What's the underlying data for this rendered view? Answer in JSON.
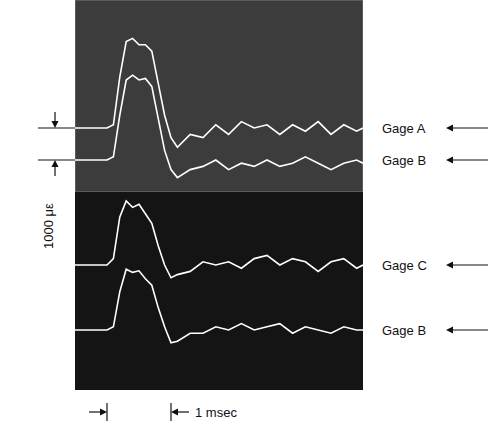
{
  "chart_data": [
    {
      "type": "line",
      "x": [
        0,
        0.3,
        0.5,
        0.6,
        0.7,
        0.8,
        0.9,
        1.0,
        1.1,
        1.2,
        1.3,
        1.4,
        1.5,
        1.6,
        1.8,
        2.0,
        2.2,
        2.4,
        2.6,
        2.8,
        3.0,
        3.2,
        3.4,
        3.6,
        3.8,
        4.0,
        4.2,
        4.4,
        4.5
      ],
      "series": [
        {
          "name": "Gage A",
          "color": "#ffffff",
          "values": [
            0,
            0,
            0,
            100,
            1600,
            2700,
            2800,
            2600,
            2600,
            2400,
            1400,
            400,
            -300,
            -600,
            -200,
            -300,
            100,
            -200,
            200,
            0,
            100,
            -200,
            100,
            -100,
            200,
            -200,
            100,
            -100,
            0
          ]
        }
      ],
      "xlim": [
        0,
        4.5
      ],
      "ylim": [
        -2000,
        4000
      ],
      "xticks": [
        0,
        0.5,
        1,
        1.5,
        2,
        2.5,
        3,
        3.5,
        4,
        4.5
      ],
      "yticks": [
        -2000,
        -1000,
        0,
        1000,
        2000,
        3000,
        4000
      ],
      "grid": true,
      "tick_labels": false
    },
    {
      "type": "line",
      "x": [
        0,
        0.3,
        0.5,
        0.6,
        0.7,
        0.8,
        0.9,
        1.0,
        1.1,
        1.2,
        1.3,
        1.4,
        1.5,
        1.6,
        1.8,
        2.0,
        2.2,
        2.4,
        2.6,
        2.8,
        3.0,
        3.2,
        3.4,
        3.6,
        3.8,
        4.0,
        4.2,
        4.4,
        4.5
      ],
      "series": [
        {
          "name": "Gage B",
          "color": "#ffffff",
          "values": [
            0,
            0,
            0,
            100,
            1400,
            2500,
            2650,
            2500,
            2550,
            2300,
            1300,
            300,
            -300,
            -550,
            -300,
            -200,
            0,
            -300,
            -100,
            -200,
            0,
            -200,
            -100,
            100,
            -100,
            -300,
            -100,
            0,
            -100
          ]
        }
      ],
      "xlim": [
        0,
        4.5
      ],
      "ylim": [
        -1000,
        3000
      ],
      "grid": false,
      "tick_labels": false
    },
    {
      "type": "line",
      "x": [
        0,
        0.3,
        0.5,
        0.6,
        0.7,
        0.8,
        0.9,
        1.0,
        1.1,
        1.2,
        1.3,
        1.4,
        1.5,
        1.6,
        1.8,
        2.0,
        2.2,
        2.4,
        2.6,
        2.8,
        3.0,
        3.2,
        3.4,
        3.6,
        3.8,
        4.0,
        4.2,
        4.4,
        4.5
      ],
      "series": [
        {
          "name": "Gage C",
          "color": "#ffffff",
          "values": [
            0,
            0,
            0,
            200,
            1500,
            2000,
            1800,
            1900,
            1600,
            1300,
            600,
            0,
            -400,
            -300,
            -200,
            100,
            0,
            100,
            -100,
            200,
            300,
            0,
            200,
            100,
            -200,
            100,
            200,
            -100,
            0
          ]
        }
      ],
      "xlim": [
        0,
        4.5
      ],
      "ylim": [
        -1000,
        3000
      ],
      "grid": false,
      "tick_labels": false
    },
    {
      "type": "line",
      "x": [
        0,
        0.3,
        0.5,
        0.6,
        0.7,
        0.8,
        0.9,
        1.0,
        1.1,
        1.2,
        1.3,
        1.4,
        1.5,
        1.6,
        1.8,
        2.0,
        2.2,
        2.4,
        2.6,
        2.8,
        3.0,
        3.2,
        3.4,
        3.6,
        3.8,
        4.0,
        4.2,
        4.4,
        4.5
      ],
      "series": [
        {
          "name": "Gage B",
          "color": "#ffffff",
          "values": [
            0,
            0,
            0,
            100,
            1200,
            1900,
            1800,
            1850,
            1600,
            1400,
            700,
            100,
            -400,
            -350,
            -100,
            -100,
            100,
            0,
            200,
            0,
            100,
            200,
            -100,
            100,
            0,
            -100,
            100,
            0,
            0
          ]
        }
      ],
      "xlim": [
        0,
        4.5
      ],
      "ylim": [
        -1000,
        3000
      ],
      "grid": false,
      "tick_labels": false
    }
  ],
  "scale_bars": [
    {
      "axis": "y",
      "length": 1000,
      "label": "1000 με"
    },
    {
      "axis": "x",
      "length": 1,
      "label": "1 msec"
    }
  ]
}
